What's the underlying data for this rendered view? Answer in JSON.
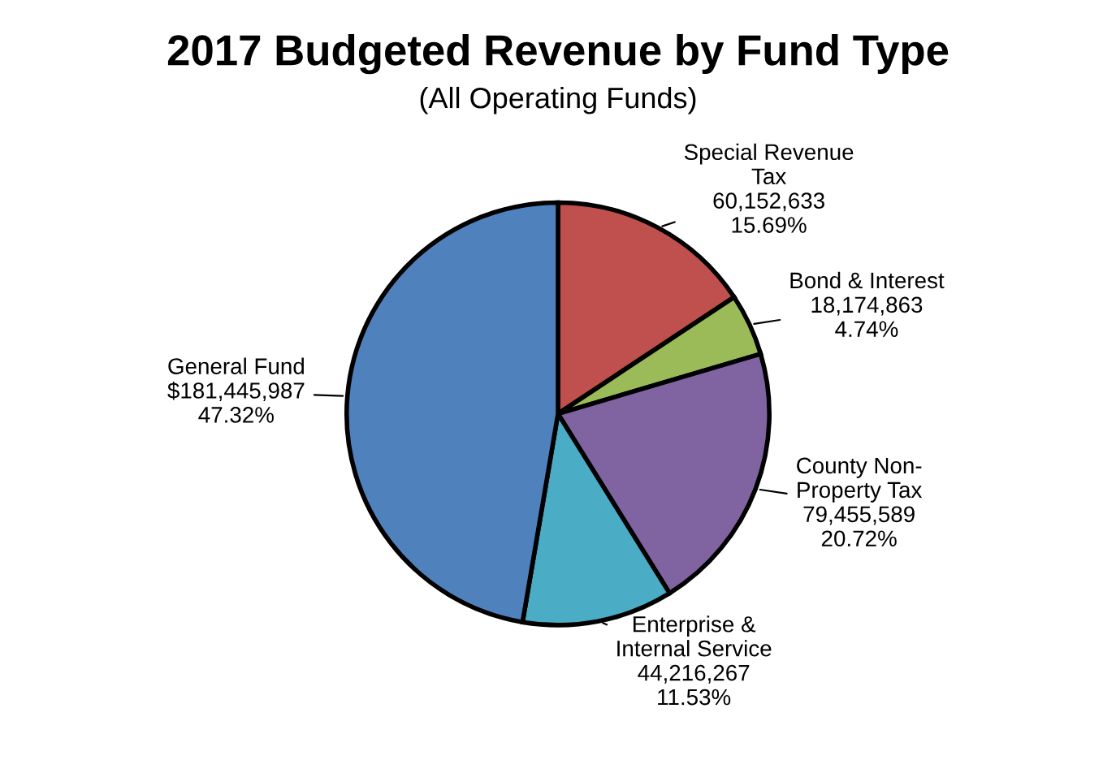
{
  "chart_data": {
    "type": "pie",
    "title": "2017 Budgeted Revenue by Fund Type",
    "subtitle": "(All Operating Funds)",
    "categories": [
      "Special Revenue\nTax",
      "Bond & Interest",
      "County Non-\nProperty Tax",
      "Enterprise &\nInternal Service",
      "General Fund"
    ],
    "values": [
      60152633,
      18174863,
      79455589,
      44216267,
      181445987
    ],
    "colors": [
      "#c0504d",
      "#9bbb59",
      "#8064a2",
      "#4bacc6",
      "#4f81bd"
    ],
    "value_labels": [
      "60,152,633\n15.69%",
      "18,174,863\n4.74%",
      "79,455,589\n20.72%",
      "44,216,267\n11.53%",
      "$181,445,987\n47.32%"
    ],
    "legend": false
  }
}
